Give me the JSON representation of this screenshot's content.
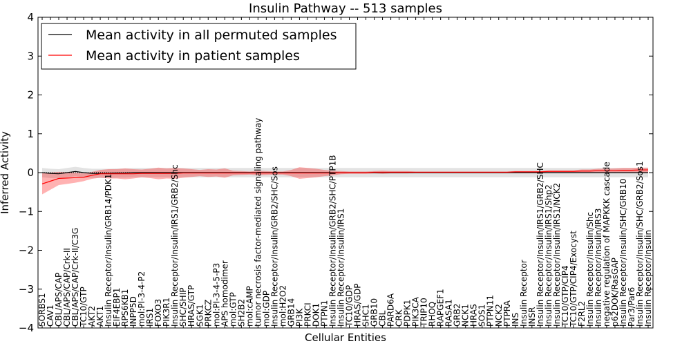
{
  "chart_data": {
    "type": "line",
    "title": "Insulin Pathway -- 513 samples",
    "xlabel": "Cellular Entities",
    "ylabel": "Inferred Activity",
    "ylim": [
      -4,
      4
    ],
    "yticks": [
      -4,
      -3,
      -2,
      -1,
      0,
      1,
      2,
      3,
      4
    ],
    "ytick_labels": [
      "−4",
      "−3",
      "−2",
      "−1",
      "0",
      "1",
      "2",
      "3",
      "4"
    ],
    "grid": false,
    "legend_position": "top-left",
    "categories": [
      "SORBS1",
      "CAV1",
      "CBL/APS/CAP",
      "CBL/APS/CAP/Crk-II",
      "CBL/APS/CAP/Crk-II/C3G",
      "TC10/GTP",
      "AKT2",
      "AKT1",
      "Insulin Receptor/Insulin/GRB14/PDK1",
      "EIF4EBP1",
      "RPS6KB1",
      "INPP5D",
      "mol:PI-3-4-P2",
      "IRS1",
      "FOXO3",
      "PIK3R1",
      "Insulin Receptor/Insulin/IRS1/GRB2/Shc",
      "SHC/SHIP",
      "HRAS/GTP",
      "SGK1",
      "PRKCZ",
      "mol:PI-3-4-5-P3",
      "APS homodimer",
      "mol:GTP",
      "SH2B2",
      "mol:cAMP",
      "tumor necrosis factor-mediated signaling pathway",
      "mol:GDP",
      "Insulin Receptor/Insulin/GRB2/SHC/Sos",
      "mol:H2O2",
      "GRB14",
      "PI3K",
      "PRKCI",
      "DOK1",
      "PTPN1",
      "Insulin Receptor/Insulin/GRB2/SHC/PTP1B",
      "Insulin Receptor/Insulin/IRS1",
      "TC10/GDP",
      "HRAS/GDP",
      "SHC1",
      "GRB10",
      "CBL",
      "PARD6A",
      "CRK",
      "PDPK1",
      "PIK3CA",
      "TRIP10",
      "RHOQ",
      "RAPGEF1",
      "RASA1",
      "GRB2",
      "NCK1",
      "HRAS",
      "SOS1",
      "PTPN11",
      "NCK2",
      "PTPRA",
      "INS",
      "Insulin Receptor",
      "INSR",
      "Insulin Receptor/Insulin/IRS1/GRB2/SHC",
      "Insulin Receptor/Insulin/IRS1/Shp2",
      "Insulin Receptor/Insulin/IRS1/NCK2",
      "TC10/GTP/CIP4",
      "TC10/GTP/CIP4/Exocyst",
      "F2RL2",
      "Insulin Receptor/Insulin/Shc",
      "Insulin Receptor/Insulin/IRS3",
      "negative regulation of MAPKKK cascade",
      "p62DOK/RasGAP",
      "Insulin Receptor/Insulin/SHC/GRB10",
      "Par3/Par6",
      "Insulin Receptor/Insulin/SHC/GRB2/Sos1",
      "Insulin Receptor/Insulin"
    ],
    "series": [
      {
        "name": "Mean activity in all permuted samples",
        "color": "#000000",
        "values": [
          0.0,
          -0.02,
          -0.03,
          0.0,
          0.03,
          0.0,
          -0.02,
          -0.02,
          -0.02,
          -0.01,
          -0.01,
          0.0,
          0.0,
          0.0,
          0.0,
          0.0,
          0.0,
          0.0,
          0.0,
          0.0,
          0.0,
          0.0,
          0.0,
          0.0,
          0.0,
          0.0,
          0.0,
          0.0,
          0.0,
          0.0,
          0.0,
          0.0,
          0.0,
          0.0,
          0.0,
          0.0,
          0.0,
          0.0,
          0.0,
          0.0,
          0.0,
          0.0,
          0.0,
          0.0,
          0.0,
          0.0,
          0.0,
          0.0,
          0.0,
          0.0,
          0.0,
          0.0,
          0.0,
          0.0,
          0.0,
          0.0,
          0.0,
          0.0,
          0.0,
          0.0,
          0.0,
          0.0,
          0.0,
          0.0,
          0.0,
          0.0,
          0.0,
          0.0,
          0.0,
          0.0,
          0.0,
          0.0,
          0.0,
          0.0
        ],
        "band": 0.12
      },
      {
        "name": "Mean activity in patient samples",
        "color": "#ff0000",
        "values": [
          -0.29,
          -0.22,
          -0.15,
          -0.14,
          -0.13,
          -0.12,
          -0.07,
          -0.03,
          -0.03,
          -0.03,
          -0.03,
          -0.03,
          -0.02,
          -0.02,
          -0.02,
          -0.02,
          -0.02,
          -0.01,
          -0.01,
          -0.01,
          -0.01,
          -0.01,
          -0.01,
          -0.01,
          -0.01,
          -0.01,
          -0.01,
          -0.01,
          -0.01,
          -0.01,
          -0.01,
          -0.01,
          -0.01,
          -0.01,
          -0.01,
          -0.01,
          0.0,
          0.0,
          0.0,
          0.0,
          0.01,
          0.01,
          0.01,
          0.01,
          0.01,
          0.01,
          0.01,
          0.01,
          0.01,
          0.01,
          0.01,
          0.01,
          0.01,
          0.01,
          0.01,
          0.01,
          0.01,
          0.02,
          0.02,
          0.02,
          0.02,
          0.03,
          0.03,
          0.03,
          0.03,
          0.04,
          0.04,
          0.05,
          0.05,
          0.05,
          0.06,
          0.06,
          0.07,
          0.07
        ],
        "band_half_width": [
          0.27,
          0.22,
          0.17,
          0.15,
          0.13,
          0.1,
          0.09,
          0.1,
          0.12,
          0.12,
          0.14,
          0.12,
          0.1,
          0.12,
          0.15,
          0.13,
          0.14,
          0.12,
          0.1,
          0.08,
          0.1,
          0.09,
          0.12,
          0.06,
          0.05,
          0.04,
          0.06,
          0.05,
          0.04,
          0.04,
          0.08,
          0.15,
          0.13,
          0.11,
          0.08,
          0.06,
          0.04,
          0.03,
          0.03,
          0.03,
          0.03,
          0.04,
          0.03,
          0.03,
          0.03,
          0.02,
          0.02,
          0.02,
          0.02,
          0.02,
          0.02,
          0.02,
          0.02,
          0.02,
          0.02,
          0.02,
          0.02,
          0.02,
          0.02,
          0.02,
          0.02,
          0.03,
          0.03,
          0.03,
          0.03,
          0.04,
          0.04,
          0.05,
          0.05,
          0.06,
          0.06,
          0.06,
          0.06,
          0.06
        ]
      }
    ]
  }
}
